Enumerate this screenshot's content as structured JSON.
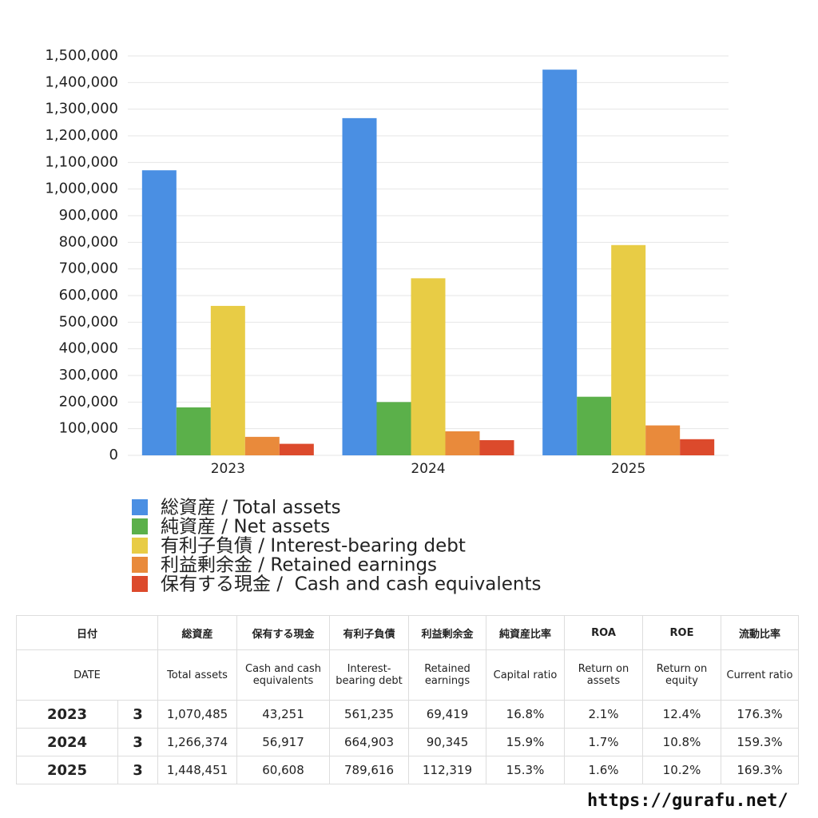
{
  "chart_data": {
    "type": "bar",
    "categories": [
      "2023",
      "2024",
      "2025"
    ],
    "series": [
      {
        "name": "総資産 / Total assets",
        "color": "#4a8fe3",
        "values": [
          1070485,
          1266374,
          1448451
        ]
      },
      {
        "name": "純資産 / Net assets",
        "color": "#5bb04a",
        "values": [
          180000,
          200000,
          220000
        ]
      },
      {
        "name": "有利子負債 / Interest-bearing debt",
        "color": "#e8cc45",
        "values": [
          561235,
          664903,
          789616
        ]
      },
      {
        "name": "利益剰余金 / Retained earnings",
        "color": "#e98a3b",
        "values": [
          69419,
          90345,
          112319
        ]
      },
      {
        "name": "保有する現金 /  Cash and cash equivalents",
        "color": "#dc4a2c",
        "values": [
          43251,
          56917,
          60608
        ]
      }
    ],
    "ylim": [
      0,
      1500000
    ],
    "yticks": [
      0,
      {
        "value": 100000,
        "label": "100,000"
      },
      {
        "value": 200000,
        "label": "200,000"
      },
      {
        "value": 300000,
        "label": "300,000"
      },
      {
        "value": 400000,
        "label": "400,000"
      },
      {
        "value": 500000,
        "label": "500,000"
      },
      {
        "value": 600000,
        "label": "600,000"
      },
      {
        "value": 700000,
        "label": "700,000"
      },
      {
        "value": 800000,
        "label": "800,000"
      },
      {
        "value": 900000,
        "label": "900,000"
      },
      {
        "value": 1000000,
        "label": "1,000,000"
      },
      {
        "value": 1100000,
        "label": "1,100,000"
      },
      {
        "value": 1200000,
        "label": "1,200,000"
      },
      {
        "value": 1300000,
        "label": "1,300,000"
      },
      {
        "value": 1400000,
        "label": "1,400,000"
      },
      {
        "value": 1500000,
        "label": "1,500,000"
      }
    ],
    "grid": true
  },
  "table": {
    "header_ja": [
      "日付",
      "総資産",
      "保有する現金",
      "有利子負債",
      "利益剰余金",
      "純資産比率",
      "ROA",
      "ROE",
      "流動比率"
    ],
    "header_en": [
      "DATE",
      "Total assets",
      "Cash and cash equivalents",
      "Interest-bearing debt",
      "Retained earnings",
      "Capital ratio",
      "Return on assets",
      "Return on equity",
      "Current ratio"
    ],
    "rows": [
      [
        "2023",
        "3",
        "1,070,485",
        "43,251",
        "561,235",
        "69,419",
        "16.8%",
        "2.1%",
        "12.4%",
        "176.3%"
      ],
      [
        "2024",
        "3",
        "1,266,374",
        "56,917",
        "664,903",
        "90,345",
        "15.9%",
        "1.7%",
        "10.8%",
        "159.3%"
      ],
      [
        "2025",
        "3",
        "1,448,451",
        "60,608",
        "789,616",
        "112,319",
        "15.3%",
        "1.6%",
        "10.2%",
        "169.3%"
      ]
    ]
  },
  "footer": {
    "url": "https://gurafu.net/"
  }
}
